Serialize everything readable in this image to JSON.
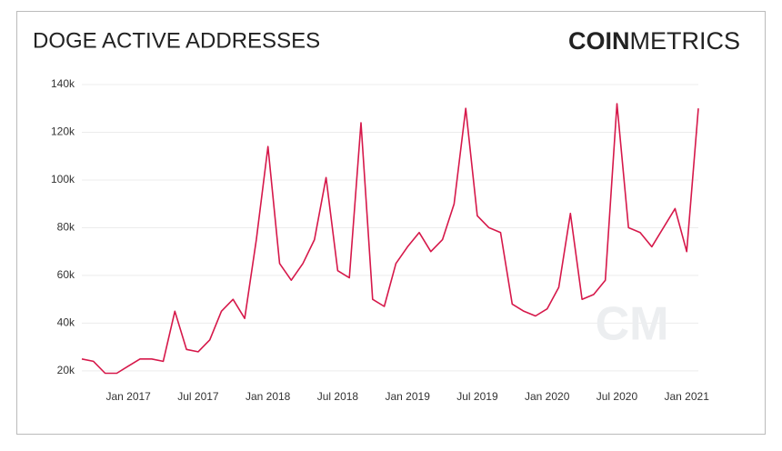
{
  "chart_data": {
    "type": "line",
    "title": "DOGE ACTIVE ADDRESSES",
    "logo": [
      "COIN",
      "METRICS"
    ],
    "watermark": "CM",
    "x": [
      "2016-09",
      "2016-10",
      "2016-11",
      "2016-12",
      "2017-01",
      "2017-02",
      "2017-03",
      "2017-04",
      "2017-05",
      "2017-06",
      "2017-07",
      "2017-08",
      "2017-09",
      "2017-10",
      "2017-11",
      "2017-12",
      "2018-01",
      "2018-02",
      "2018-03",
      "2018-04",
      "2018-05",
      "2018-06",
      "2018-07",
      "2018-08",
      "2018-09",
      "2018-10",
      "2018-11",
      "2018-12",
      "2019-01",
      "2019-02",
      "2019-03",
      "2019-04",
      "2019-05",
      "2019-06",
      "2019-07",
      "2019-08",
      "2019-09",
      "2019-10",
      "2019-11",
      "2019-12",
      "2020-01",
      "2020-02",
      "2020-03",
      "2020-04",
      "2020-05",
      "2020-06",
      "2020-07",
      "2020-08",
      "2020-09",
      "2020-10",
      "2020-11",
      "2020-12",
      "2021-01",
      "2021-02"
    ],
    "series": [
      {
        "name": "Active Addresses",
        "color": "#d6184a",
        "values": [
          25000,
          24000,
          19000,
          19000,
          22000,
          25000,
          25000,
          24000,
          45000,
          29000,
          28000,
          33000,
          45000,
          50000,
          42000,
          75000,
          114000,
          65000,
          58000,
          65000,
          75000,
          101000,
          62000,
          59000,
          124000,
          50000,
          47000,
          65000,
          72000,
          78000,
          70000,
          75000,
          90000,
          130000,
          85000,
          80000,
          78000,
          48000,
          45000,
          43000,
          46000,
          55000,
          86000,
          50000,
          52000,
          58000,
          132000,
          80000,
          78000,
          72000,
          80000,
          88000,
          70000,
          130000
        ]
      }
    ],
    "xlim": [
      "2016-09",
      "2021-02"
    ],
    "xticks": [
      {
        "value": "2017-01",
        "label": "Jan 2017"
      },
      {
        "value": "2017-07",
        "label": "Jul 2017"
      },
      {
        "value": "2018-01",
        "label": "Jan 2018"
      },
      {
        "value": "2018-07",
        "label": "Jul 2018"
      },
      {
        "value": "2019-01",
        "label": "Jan 2019"
      },
      {
        "value": "2019-07",
        "label": "Jul 2019"
      },
      {
        "value": "2020-01",
        "label": "Jan 2020"
      },
      {
        "value": "2020-07",
        "label": "Jul 2020"
      },
      {
        "value": "2021-01",
        "label": "Jan 2021"
      }
    ],
    "ylim": [
      15000,
      140000
    ],
    "yticks": [
      {
        "value": 20000,
        "label": "20k"
      },
      {
        "value": 40000,
        "label": "40k"
      },
      {
        "value": 60000,
        "label": "60k"
      },
      {
        "value": 80000,
        "label": "80k"
      },
      {
        "value": 100000,
        "label": "100k"
      },
      {
        "value": 120000,
        "label": "120k"
      },
      {
        "value": 140000,
        "label": "140k"
      }
    ],
    "grid": true
  }
}
